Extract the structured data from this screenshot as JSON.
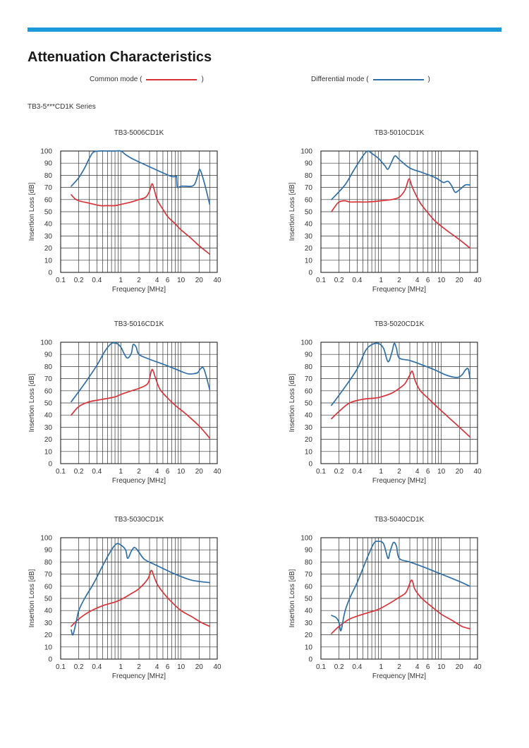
{
  "page": {
    "title": "Attenuation Characteristics",
    "series_label": "TB3-5***CD1K Series"
  },
  "legend": {
    "common_mode": {
      "label": "Common mode (",
      "close": ")",
      "color": "#d9333a"
    },
    "differential_mode": {
      "label": "Differential mode (",
      "close": ")",
      "color": "#2f6fa8"
    }
  },
  "chart_data": [
    {
      "type": "line",
      "title": "TB3-5006CD1K",
      "xlabel": "Frequency [MHz]",
      "ylabel": "Insertion Loss [dB]",
      "xscale": "log",
      "xlim": [
        0.1,
        40
      ],
      "ylim": [
        0,
        100
      ],
      "grid": true,
      "xticks": [
        "0.1",
        "0.2",
        "0.4",
        "1",
        "2",
        "4",
        "6",
        "10",
        "20",
        "40"
      ],
      "yticks": [
        "0",
        "10",
        "20",
        "30",
        "40",
        "50",
        "60",
        "70",
        "80",
        "90",
        "100"
      ],
      "series": [
        {
          "name": "Common mode",
          "color": "#d9333a",
          "x": [
            0.15,
            0.17,
            0.2,
            0.3,
            0.45,
            0.6,
            0.8,
            1,
            1.5,
            2,
            2.6,
            3,
            3.3,
            3.6,
            4,
            5,
            6,
            8,
            10,
            14,
            20,
            30
          ],
          "y": [
            64,
            61,
            59,
            57,
            55,
            55,
            55,
            56,
            58,
            60,
            62,
            67,
            73,
            68,
            60,
            52,
            46,
            40,
            35,
            29,
            22,
            15
          ]
        },
        {
          "name": "Differential mode",
          "color": "#2f6fa8",
          "x": [
            0.15,
            0.2,
            0.25,
            0.3,
            0.35,
            0.45,
            0.6,
            0.8,
            1,
            1.2,
            1.5,
            2,
            3,
            5,
            7,
            8,
            8.4,
            8.6,
            9,
            10,
            12,
            15,
            17,
            19,
            20,
            21,
            24,
            30
          ],
          "y": [
            71,
            78,
            86,
            94,
            99,
            100,
            100,
            100,
            100,
            97,
            94,
            91,
            87,
            82,
            79,
            79,
            79,
            71,
            70,
            71,
            71,
            71,
            73,
            80,
            84,
            84,
            75,
            56
          ]
        }
      ]
    },
    {
      "type": "line",
      "title": "TB3-5010CD1K",
      "xlabel": "Frequency [MHz]",
      "ylabel": "Insertion Loss [dB]",
      "xscale": "log",
      "xlim": [
        0.1,
        40
      ],
      "ylim": [
        0,
        100
      ],
      "grid": true,
      "xticks": [
        "0.1",
        "0.2",
        "0.4",
        "1",
        "2",
        "4",
        "6",
        "10",
        "20",
        "40"
      ],
      "yticks": [
        "0",
        "10",
        "20",
        "30",
        "40",
        "50",
        "60",
        "70",
        "80",
        "90",
        "100"
      ],
      "series": [
        {
          "name": "Common mode",
          "color": "#d9333a",
          "x": [
            0.15,
            0.17,
            0.2,
            0.25,
            0.3,
            0.4,
            0.6,
            1,
            1.5,
            2,
            2.5,
            2.9,
            3.2,
            3.6,
            4.5,
            6,
            8,
            12,
            20,
            30
          ],
          "y": [
            50,
            54,
            58,
            59,
            58,
            58,
            58,
            59,
            60,
            62,
            68,
            77,
            72,
            66,
            57,
            49,
            42,
            35,
            27,
            20
          ]
        },
        {
          "name": "Differential mode",
          "color": "#2f6fa8",
          "x": [
            0.15,
            0.25,
            0.35,
            0.5,
            0.6,
            0.7,
            0.9,
            1.15,
            1.3,
            1.5,
            1.7,
            2,
            3,
            5,
            8,
            10,
            11,
            13,
            15,
            17,
            20,
            25,
            30
          ],
          "y": [
            60,
            72,
            84,
            96,
            100,
            98,
            94,
            88,
            85,
            91,
            96,
            93,
            86,
            82,
            78,
            75,
            74,
            75,
            71,
            66,
            68,
            72,
            72
          ]
        }
      ]
    },
    {
      "type": "line",
      "title": "TB3-5016CD1K",
      "xlabel": "Frequency [MHz]",
      "ylabel": "Insertion Loss [dB]",
      "xscale": "log",
      "xlim": [
        0.1,
        40
      ],
      "ylim": [
        0,
        100
      ],
      "grid": true,
      "xticks": [
        "0.1",
        "0.2",
        "0.4",
        "1",
        "2",
        "4",
        "6",
        "10",
        "20",
        "40"
      ],
      "yticks": [
        "0",
        "10",
        "20",
        "30",
        "40",
        "50",
        "60",
        "70",
        "80",
        "90",
        "100"
      ],
      "series": [
        {
          "name": "Common mode",
          "color": "#d9333a",
          "x": [
            0.15,
            0.2,
            0.3,
            0.5,
            0.8,
            1,
            1.5,
            2,
            2.8,
            3.2,
            3.4,
            3.8,
            4.5,
            6,
            8,
            12,
            20,
            30
          ],
          "y": [
            40,
            47,
            51,
            53,
            55,
            57,
            60,
            62,
            66,
            76,
            77,
            70,
            61,
            54,
            48,
            41,
            31,
            21
          ]
        },
        {
          "name": "Differential mode",
          "color": "#2f6fa8",
          "x": [
            0.15,
            0.25,
            0.4,
            0.55,
            0.7,
            0.85,
            1,
            1.15,
            1.3,
            1.5,
            1.6,
            1.8,
            2,
            3,
            5,
            8,
            10,
            13,
            16,
            19,
            21,
            24,
            30
          ],
          "y": [
            51,
            66,
            81,
            93,
            99,
            99,
            96,
            90,
            87,
            91,
            98,
            96,
            90,
            86,
            82,
            78,
            76,
            74,
            74,
            75,
            78,
            78,
            61
          ]
        }
      ]
    },
    {
      "type": "line",
      "title": "TB3-5020CD1K",
      "xlabel": "Frequency [MHz]",
      "ylabel": "Insertion Loss [dB]",
      "xscale": "log",
      "xlim": [
        0.1,
        40
      ],
      "ylim": [
        0,
        100
      ],
      "grid": true,
      "xticks": [
        "0.1",
        "0.2",
        "0.4",
        "1",
        "2",
        "4",
        "6",
        "10",
        "20",
        "40"
      ],
      "yticks": [
        "0",
        "10",
        "20",
        "30",
        "40",
        "50",
        "60",
        "70",
        "80",
        "90",
        "100"
      ],
      "series": [
        {
          "name": "Common mode",
          "color": "#d9333a",
          "x": [
            0.15,
            0.2,
            0.3,
            0.5,
            0.8,
            1,
            1.5,
            2,
            2.5,
            3,
            3.3,
            3.7,
            4.5,
            6,
            8,
            12,
            20,
            30
          ],
          "y": [
            37,
            43,
            50,
            53,
            54,
            55,
            58,
            62,
            66,
            73,
            76,
            68,
            60,
            54,
            48,
            40,
            30,
            22
          ]
        },
        {
          "name": "Differential mode",
          "color": "#2f6fa8",
          "x": [
            0.15,
            0.25,
            0.4,
            0.55,
            0.7,
            0.9,
            1.1,
            1.3,
            1.5,
            1.65,
            1.8,
            2,
            3,
            5,
            8,
            12,
            18,
            22,
            25,
            28,
            30
          ],
          "y": [
            48,
            63,
            78,
            93,
            98,
            99,
            95,
            84,
            91,
            99,
            95,
            87,
            85,
            81,
            77,
            73,
            71,
            73,
            77,
            78,
            70
          ]
        }
      ]
    },
    {
      "type": "line",
      "title": "TB3-5030CD1K",
      "xlabel": "Frequency [MHz]",
      "ylabel": "Insertion Loss [dB]",
      "xscale": "log",
      "xlim": [
        0.1,
        40
      ],
      "ylim": [
        0,
        100
      ],
      "grid": true,
      "xticks": [
        "0.1",
        "0.2",
        "0.4",
        "1",
        "2",
        "4",
        "6",
        "10",
        "20",
        "40"
      ],
      "yticks": [
        "0",
        "10",
        "20",
        "30",
        "40",
        "50",
        "60",
        "70",
        "80",
        "90",
        "100"
      ],
      "series": [
        {
          "name": "Common mode",
          "color": "#d9333a",
          "x": [
            0.15,
            0.2,
            0.3,
            0.5,
            0.8,
            1,
            1.5,
            2,
            2.8,
            3.2,
            3.5,
            4,
            5,
            7,
            10,
            15,
            22,
            30
          ],
          "y": [
            27,
            33,
            39,
            44,
            47,
            49,
            54,
            58,
            66,
            73,
            69,
            62,
            55,
            47,
            40,
            35,
            30,
            27
          ]
        },
        {
          "name": "Differential mode",
          "color": "#2f6fa8",
          "x": [
            0.15,
            0.16,
            0.18,
            0.2,
            0.25,
            0.35,
            0.5,
            0.7,
            0.85,
            1,
            1.2,
            1.3,
            1.5,
            1.7,
            2,
            2.5,
            4,
            8,
            15,
            30
          ],
          "y": [
            24,
            20,
            30,
            40,
            50,
            62,
            77,
            90,
            95,
            94,
            90,
            83,
            89,
            92,
            88,
            82,
            77,
            70,
            65,
            63
          ]
        }
      ]
    },
    {
      "type": "line",
      "title": "TB3-5040CD1K",
      "xlabel": "Frequency [MHz]",
      "ylabel": "Insertion Loss [dB]",
      "xscale": "log",
      "xlim": [
        0.1,
        40
      ],
      "ylim": [
        0,
        100
      ],
      "grid": true,
      "xticks": [
        "0.1",
        "0.2",
        "0.4",
        "1",
        "2",
        "4",
        "6",
        "10",
        "20",
        "40"
      ],
      "yticks": [
        "0",
        "10",
        "20",
        "30",
        "40",
        "50",
        "60",
        "70",
        "80",
        "90",
        "100"
      ],
      "series": [
        {
          "name": "Common mode",
          "color": "#d9333a",
          "x": [
            0.15,
            0.2,
            0.3,
            0.5,
            0.8,
            1,
            1.5,
            2,
            2.6,
            3.2,
            3.6,
            4.2,
            5,
            7,
            10,
            15,
            22,
            30
          ],
          "y": [
            21,
            27,
            33,
            37,
            40,
            42,
            47,
            51,
            55,
            65,
            58,
            53,
            49,
            43,
            37,
            32,
            27,
            25
          ]
        },
        {
          "name": "Differential mode",
          "color": "#2f6fa8",
          "x": [
            0.15,
            0.18,
            0.2,
            0.21,
            0.22,
            0.25,
            0.3,
            0.4,
            0.55,
            0.75,
            0.9,
            1.1,
            1.3,
            1.4,
            1.6,
            1.8,
            2,
            3,
            5,
            10,
            20,
            30
          ],
          "y": [
            36,
            34,
            30,
            24,
            25,
            39,
            50,
            63,
            80,
            95,
            97,
            95,
            83,
            88,
            96,
            93,
            83,
            80,
            76,
            70,
            64,
            60
          ]
        }
      ]
    }
  ]
}
